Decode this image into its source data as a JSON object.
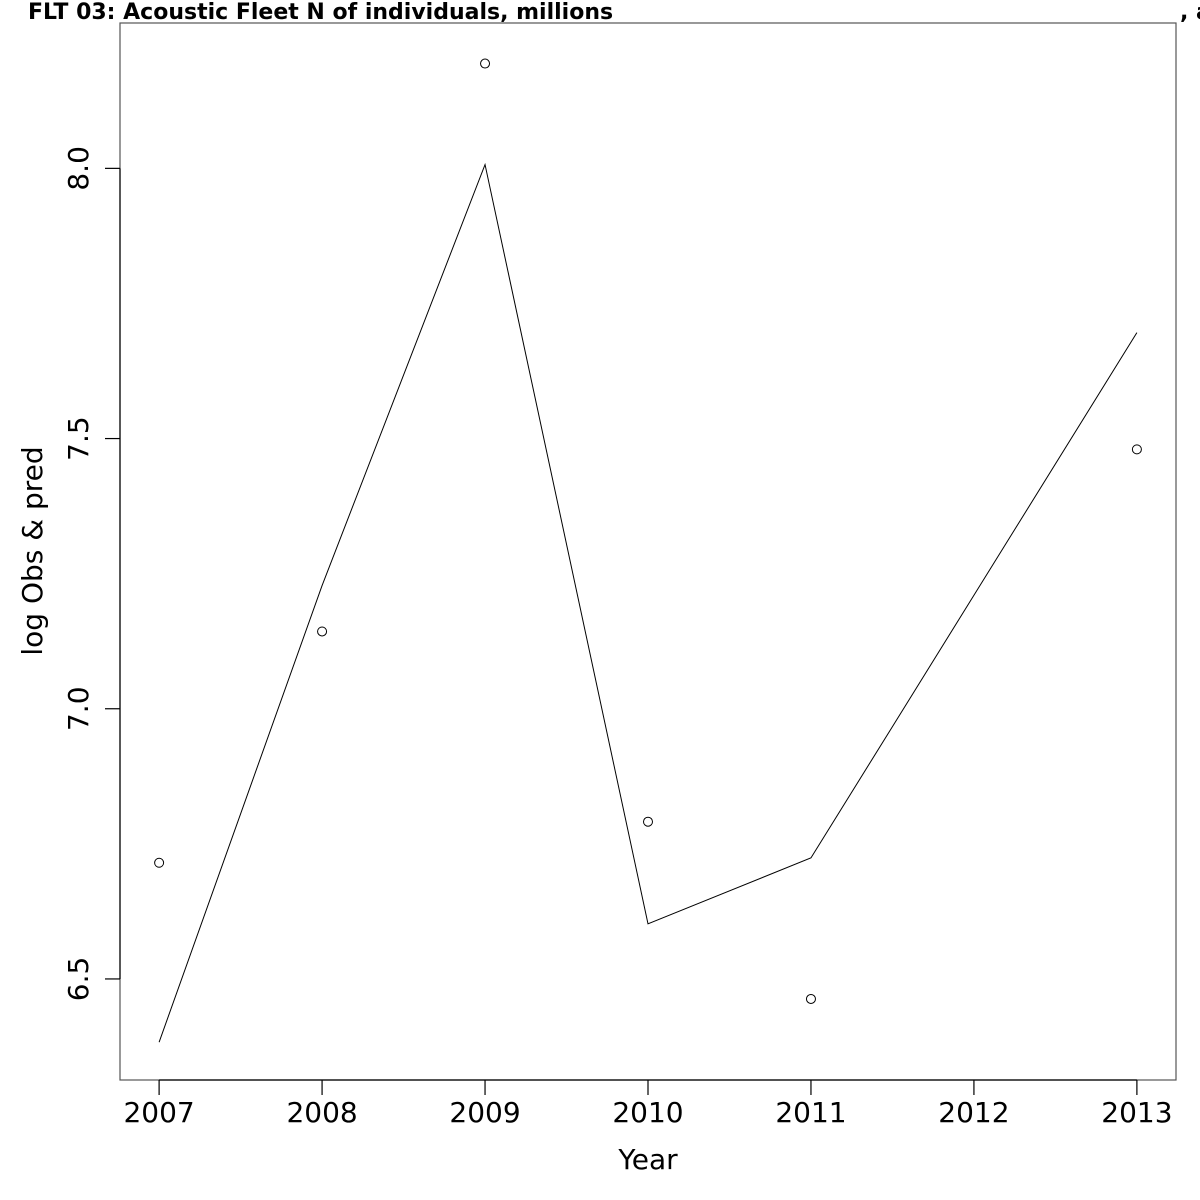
{
  "chart_data": {
    "type": "line",
    "title": "FLT 03: Acoustic Fleet   N of individuals, millions",
    "annotation": ", a",
    "xlabel": "Year",
    "ylabel": "log Obs & pred",
    "x": [
      2007,
      2008,
      2009,
      2010,
      2011,
      2012,
      2013
    ],
    "series": [
      {
        "type": "scatter",
        "color": "#000000",
        "values": [
          6.715,
          7.143,
          8.194,
          6.791,
          6.463,
          null,
          7.48
        ]
      },
      {
        "type": "line",
        "color": "#000000",
        "values": [
          6.383,
          7.228,
          8.007,
          6.602,
          6.724,
          7.21,
          7.696
        ]
      }
    ],
    "xlim": [
      2006.76,
      2013.24
    ],
    "xticks": [
      2007,
      2008,
      2009,
      2010,
      2011,
      2012,
      2013
    ],
    "ylim": [
      6.313,
      8.269
    ],
    "yticks": [
      6.5,
      {
        "value": 7.0,
        "label": "7.0"
      },
      7.5,
      {
        "value": 8.0,
        "label": "8.0"
      }
    ],
    "grid": false
  }
}
